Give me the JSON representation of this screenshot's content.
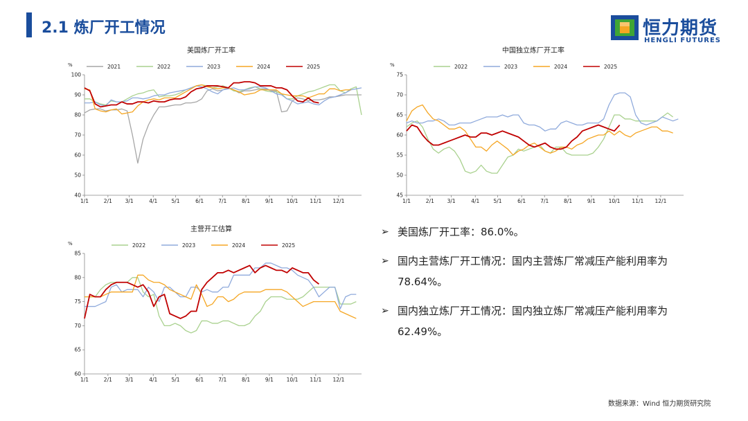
{
  "header": {
    "title": "2.1 炼厂开工情况"
  },
  "logo": {
    "name": "恒力期货",
    "sub": "HENGLI FUTURES"
  },
  "bullets": [
    {
      "text": "美国炼厂开工率：86.0%。"
    },
    {
      "text": "国内主营炼厂开工情况：国内主营炼厂常减压产能利用率为78.64%。"
    },
    {
      "text": "国内独立炼厂开工情况：国内独立炼厂常减压产能利用率为62.49%。"
    }
  ],
  "source": "数据来源：Wind 恒力期货研究院",
  "colors": {
    "2021": "#a6a6a6",
    "2022": "#a9d18e",
    "2023": "#8faadc",
    "2024": "#f5a623",
    "2025": "#c00000"
  },
  "chart_data": [
    {
      "id": "us",
      "type": "line",
      "title": "美国炼厂开工率",
      "ylabel": "%",
      "ylim": [
        40,
        100
      ],
      "yticks": [
        40,
        50,
        60,
        70,
        80,
        90,
        100
      ],
      "xlim": [
        0,
        52
      ],
      "xticks": [
        {
          "label": "1/1",
          "x": 0
        },
        {
          "label": "2/1",
          "x": 4.4
        },
        {
          "label": "3/1",
          "x": 8.4
        },
        {
          "label": "4/1",
          "x": 12.9
        },
        {
          "label": "5/1",
          "x": 17.1
        },
        {
          "label": "6/1",
          "x": 21.6
        },
        {
          "label": "7/1",
          "x": 25.9
        },
        {
          "label": "8/1",
          "x": 30.3
        },
        {
          "label": "9/1",
          "x": 34.7
        },
        {
          "label": "10/1",
          "x": 39
        },
        {
          "label": "11/1",
          "x": 43.4
        },
        {
          "label": "12/1",
          "x": 47.7
        }
      ],
      "series": [
        {
          "name": "2021",
          "values": [
            81,
            82.5,
            83,
            83,
            82,
            82.5,
            82.5,
            83,
            82,
            70,
            56,
            68,
            75,
            80,
            84,
            84,
            84.5,
            85,
            85,
            86,
            86,
            86.5,
            88,
            92,
            93,
            92,
            92.5,
            93.5,
            92.5,
            91,
            92,
            92,
            92.5,
            93,
            93,
            92,
            92,
            81.5,
            82,
            87,
            88.5,
            88,
            87,
            87.5,
            87.5,
            88,
            89,
            89,
            89.5,
            90,
            90,
            90,
            90
          ]
        },
        {
          "name": "2022",
          "values": [
            88,
            88,
            86.5,
            85.5,
            85,
            87,
            86.5,
            86.5,
            88,
            89.5,
            90.5,
            91,
            92,
            92.5,
            89,
            89.5,
            89.5,
            90,
            91,
            92.5,
            93.5,
            94.5,
            95,
            94.5,
            93.5,
            94,
            94.5,
            93.5,
            92,
            91.5,
            92.5,
            93.5,
            94,
            93,
            92,
            91.5,
            91.5,
            90.5,
            88,
            88,
            89.5,
            90.5,
            91.5,
            92,
            93,
            94,
            95,
            95,
            92,
            91,
            93,
            94,
            80
          ]
        },
        {
          "name": "2023",
          "values": [
            86,
            86,
            86.5,
            85,
            84.5,
            87.5,
            86.5,
            86.5,
            87,
            88.5,
            88.5,
            88,
            88.5,
            89.5,
            90,
            90,
            91,
            91.5,
            92,
            92.5,
            93.5,
            94.5,
            94,
            93,
            91.5,
            90.5,
            92.5,
            93,
            93.5,
            92.5,
            92.5,
            93,
            94,
            94,
            93.5,
            92,
            90.5,
            90,
            88,
            87,
            85.5,
            86,
            86.5,
            85.5,
            85,
            87,
            88.5,
            89,
            90,
            91,
            92.5,
            93,
            93.5
          ]
        },
        {
          "name": "2024",
          "values": [
            93,
            92.5,
            83,
            82,
            81.5,
            82.5,
            83,
            80.5,
            81,
            81.5,
            84.5,
            86.5,
            87.5,
            88,
            87.5,
            88.5,
            88.5,
            88.5,
            90,
            91.5,
            93,
            94.5,
            95,
            94,
            93.5,
            93,
            93.5,
            93.5,
            92.5,
            91.5,
            90,
            90.5,
            91,
            92.5,
            92.5,
            92.5,
            92.5,
            90.5,
            90,
            89.5,
            89.5,
            89.5,
            88.5,
            89.5,
            90.5,
            90.5,
            93,
            93,
            92,
            92.5,
            92.5
          ]
        },
        {
          "name": "2025",
          "values": [
            93.5,
            92,
            85.5,
            84,
            84.5,
            85,
            85,
            86.5,
            85.5,
            85.5,
            86.5,
            86.5,
            86,
            87,
            86.5,
            86.5,
            87.5,
            88,
            88,
            89,
            91.5,
            93,
            93.5,
            94.5,
            94.5,
            94.5,
            94,
            93.5,
            96,
            96,
            96.5,
            96.5,
            96,
            94.5,
            94.5,
            94.5,
            93.5,
            93.5,
            92.5,
            89.5,
            87,
            86.5,
            88.5,
            86.5,
            86
          ]
        }
      ]
    },
    {
      "id": "cn_independent",
      "type": "line",
      "title": "中国独立炼厂开工率",
      "ylabel": "%",
      "ylim": [
        45,
        75
      ],
      "yticks": [
        45,
        50,
        55,
        60,
        65,
        70,
        75
      ],
      "xlim": [
        0,
        52
      ],
      "xticks": [
        {
          "label": "1/1",
          "x": 0
        },
        {
          "label": "2/1",
          "x": 4.4
        },
        {
          "label": "3/1",
          "x": 8.4
        },
        {
          "label": "4/1",
          "x": 12.9
        },
        {
          "label": "5/1",
          "x": 17.1
        },
        {
          "label": "6/1",
          "x": 21.6
        },
        {
          "label": "7/1",
          "x": 25.9
        },
        {
          "label": "8/1",
          "x": 30.3
        },
        {
          "label": "9/1",
          "x": 34.7
        },
        {
          "label": "10/1",
          "x": 39
        },
        {
          "label": "11/1",
          "x": 43.4
        },
        {
          "label": "12/1",
          "x": 47.7
        }
      ],
      "series": [
        {
          "name": "2022",
          "values": [
            62,
            63,
            63.5,
            62,
            59,
            56.5,
            55.5,
            56.5,
            57,
            56,
            54,
            51,
            50.5,
            51,
            52.5,
            51,
            50.5,
            50.5,
            52.5,
            54.5,
            55,
            56.5,
            56,
            56.5,
            57,
            57.5,
            56,
            55.5,
            57,
            57,
            55.5,
            55,
            55,
            55,
            55,
            55.5,
            57,
            59,
            62,
            65,
            65,
            64,
            64,
            63.5,
            63.5,
            63.5,
            63.5,
            63.5,
            64.5,
            65.5,
            64.5
          ]
        },
        {
          "name": "2023",
          "values": [
            63,
            63.5,
            63,
            63,
            63.5,
            63.5,
            64,
            63.5,
            62.5,
            62.5,
            63,
            63,
            63,
            63.5,
            64,
            64.5,
            64.5,
            64.5,
            65,
            64.5,
            65,
            65,
            63,
            62.5,
            62.5,
            62,
            61,
            61.5,
            61.5,
            63,
            63.5,
            63,
            62.5,
            62.5,
            63,
            63,
            63,
            64,
            67.5,
            70,
            70.5,
            70.5,
            69.5,
            65,
            63,
            62.5,
            63,
            63.5,
            64.5,
            64,
            63.5,
            64
          ]
        },
        {
          "name": "2024",
          "values": [
            63.5,
            66,
            67,
            67.5,
            65.5,
            64,
            63.5,
            62.5,
            61.5,
            61.5,
            62,
            61,
            59,
            57,
            57,
            56,
            57.5,
            58.5,
            57.5,
            56.5,
            55,
            56,
            56.5,
            57.5,
            58,
            57,
            56,
            55.5,
            56,
            57,
            57,
            56.5,
            57.5,
            58,
            59,
            59.5,
            60,
            60,
            61,
            60,
            61,
            60,
            59.5,
            60.5,
            61,
            61.5,
            62,
            62,
            61,
            61,
            60.5
          ]
        },
        {
          "name": "2025",
          "values": [
            61,
            62.5,
            62,
            60,
            58.5,
            57.5,
            57.5,
            58,
            58.5,
            59,
            59.5,
            60,
            59.5,
            59.5,
            60.5,
            60.5,
            60,
            60.5,
            61,
            60.5,
            60,
            59.5,
            58.5,
            57.5,
            57,
            57.5,
            58,
            57,
            56.5,
            56.5,
            57,
            58.5,
            59.5,
            61,
            61.5,
            62,
            62.5,
            62,
            61.5,
            61,
            62.49
          ]
        }
      ]
    },
    {
      "id": "cn_major",
      "type": "line",
      "title": "主营开工估算",
      "ylabel": "%",
      "ylim": [
        60,
        85
      ],
      "yticks": [
        60,
        65,
        70,
        75,
        80,
        85
      ],
      "xlim": [
        0,
        52
      ],
      "xticks": [
        {
          "label": "1/1",
          "x": 0
        },
        {
          "label": "2/1",
          "x": 4.4
        },
        {
          "label": "3/1",
          "x": 8.4
        },
        {
          "label": "4/1",
          "x": 12.9
        },
        {
          "label": "5/1",
          "x": 17.1
        },
        {
          "label": "6/1",
          "x": 21.6
        },
        {
          "label": "7/1",
          "x": 25.9
        },
        {
          "label": "8/1",
          "x": 30.3
        },
        {
          "label": "9/1",
          "x": 34.7
        },
        {
          "label": "10/1",
          "x": 39
        },
        {
          "label": "11/1",
          "x": 43.4
        },
        {
          "label": "12/1",
          "x": 47.7
        }
      ],
      "series": [
        {
          "name": "2022",
          "values": [
            76,
            76,
            76,
            77.5,
            78.5,
            79,
            79,
            79,
            79,
            80,
            80,
            77,
            76,
            76.5,
            72,
            70,
            70,
            70.5,
            70,
            69,
            68.5,
            69,
            71,
            71,
            70.5,
            70.5,
            71,
            71,
            70.5,
            70,
            70,
            70.5,
            72,
            73,
            75,
            76,
            76,
            76,
            75.5,
            75.5,
            75.5,
            76,
            77,
            78,
            78,
            78,
            78,
            78,
            74.5,
            74.5,
            74.5,
            75
          ]
        },
        {
          "name": "2023",
          "values": [
            74,
            74,
            74,
            74.5,
            75,
            78,
            78.5,
            77,
            77.5,
            77.5,
            77.5,
            76,
            78,
            77,
            75,
            78,
            78,
            77,
            76,
            76,
            78,
            78,
            77,
            77.5,
            77,
            77,
            78,
            78,
            80.5,
            80.5,
            80.5,
            80.5,
            82,
            82,
            83,
            83,
            82.5,
            82,
            82,
            81.5,
            80.5,
            80,
            79.5,
            78,
            76,
            77,
            78,
            78,
            73.5,
            76,
            76.5,
            76.5
          ]
        },
        {
          "name": "2024",
          "values": [
            76,
            76,
            76,
            76,
            76.5,
            77,
            77,
            77,
            77,
            77,
            80.5,
            80.5,
            79.5,
            79,
            79,
            78.5,
            77.5,
            77,
            76.5,
            76,
            75.5,
            78.5,
            76.5,
            74,
            74.5,
            76,
            76,
            75,
            75.5,
            76.5,
            77,
            77,
            77,
            77,
            77.5,
            77.5,
            77.5,
            77.5,
            77,
            76,
            75,
            74,
            74.5,
            75,
            75,
            75,
            75,
            75,
            73,
            72.5,
            72,
            71.5
          ]
        },
        {
          "name": "2025",
          "values": [
            71.5,
            76.5,
            76,
            76,
            77.5,
            78.5,
            79,
            79,
            79,
            78.5,
            78,
            78.5,
            77,
            74,
            76,
            76.5,
            72.5,
            72,
            71.5,
            72,
            73,
            73,
            77.5,
            79,
            80,
            81,
            81,
            81.5,
            81,
            81.5,
            82,
            82.5,
            81,
            82,
            82.5,
            82,
            81.5,
            81.5,
            81,
            82,
            81.5,
            81,
            81,
            79.5,
            78.64
          ]
        }
      ]
    }
  ]
}
